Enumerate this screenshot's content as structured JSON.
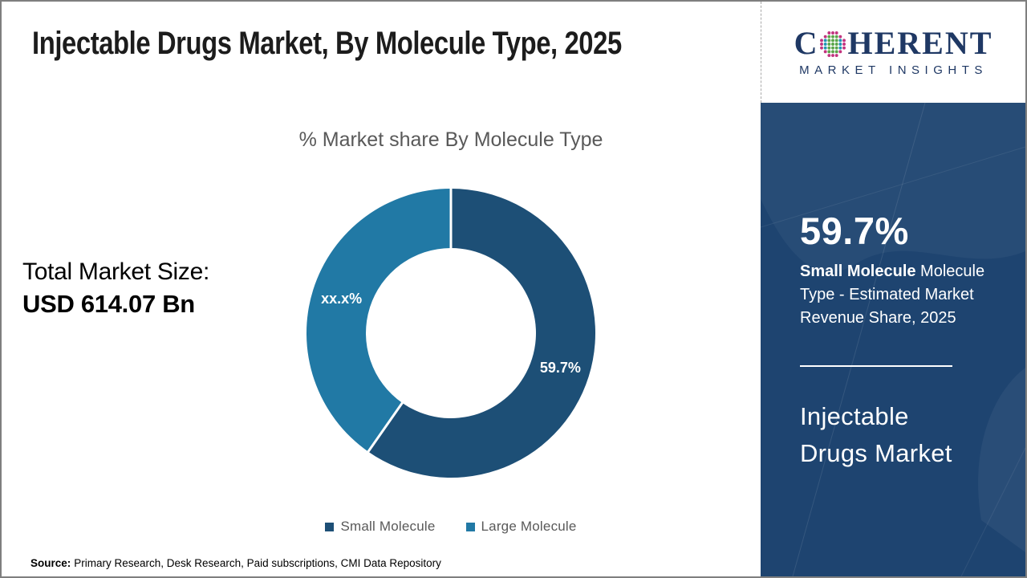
{
  "page": {
    "title": "Injectable Drugs Market, By Molecule Type, 2025",
    "source_label": "Source:",
    "source_text": "Primary Research, Desk Research, Paid subscriptions, CMI Data Repository",
    "border_color": "#7f7f7f",
    "background_color": "#ffffff"
  },
  "logo": {
    "brand_c": "C",
    "brand_rest": "HERENT",
    "subtitle": "MARKET INSIGHTS",
    "brand_color": "#1f3864",
    "globe_colors": {
      "outer": "#c2347f",
      "mid": "#2196b5",
      "core": "#5aa64a"
    }
  },
  "left_stat": {
    "label": "Total Market Size:",
    "value": "USD 614.07 Bn"
  },
  "chart_data": {
    "type": "pie",
    "donut": true,
    "title": "% Market share By Molecule Type",
    "categories": [
      "Small Molecule",
      "Large Molecule"
    ],
    "values": [
      59.7,
      40.3
    ],
    "slice_labels": [
      "59.7%",
      "xx.x%"
    ],
    "colors": [
      "#1d4f76",
      "#2179a5"
    ],
    "start_angle_deg": 0,
    "direction": "clockwise",
    "inner_radius_ratio": 0.59,
    "legend_position": "bottom",
    "label_color": "#ffffff"
  },
  "sidebar": {
    "bg_color": "#1e4470",
    "stat_value": "59.7%",
    "stat_bold": "Small Molecule",
    "stat_rest": " Molecule Type - Estimated Market Revenue Share, 2025",
    "name_line1": "Injectable",
    "name_line2": "Drugs Market"
  }
}
